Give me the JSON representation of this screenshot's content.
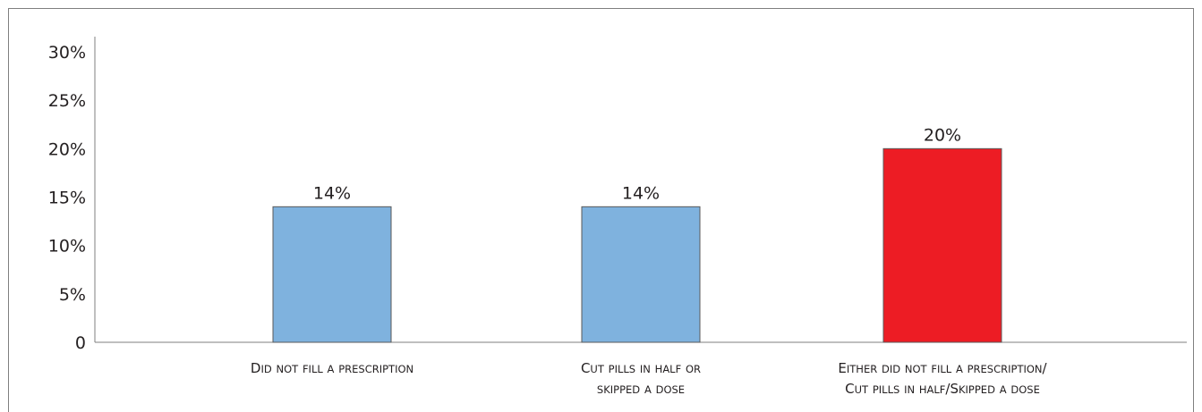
{
  "chart_data": {
    "type": "bar",
    "title": "",
    "xlabel": "",
    "ylabel": "",
    "ylim": [
      0,
      30
    ],
    "y_ticks": [
      {
        "value": 0,
        "label": "0"
      },
      {
        "value": 5,
        "label": "5%"
      },
      {
        "value": 10,
        "label": "10%"
      },
      {
        "value": 15,
        "label": "15%"
      },
      {
        "value": 20,
        "label": "20%"
      },
      {
        "value": 25,
        "label": "25%"
      },
      {
        "value": 30,
        "label": "30%"
      }
    ],
    "categories": [
      [
        "Did not fill a prescription"
      ],
      [
        "Cut pills in half or",
        "skipped a dose"
      ],
      [
        "Either did not fill a prescription/",
        "Cut pills in half/Skipped a dose"
      ]
    ],
    "values": [
      14,
      14,
      20
    ],
    "value_labels": [
      "14%",
      "14%",
      "20%"
    ],
    "bar_colors": [
      "#7fb2de",
      "#7fb2de",
      "#ed1c24"
    ],
    "grid": false,
    "legend": "none"
  }
}
